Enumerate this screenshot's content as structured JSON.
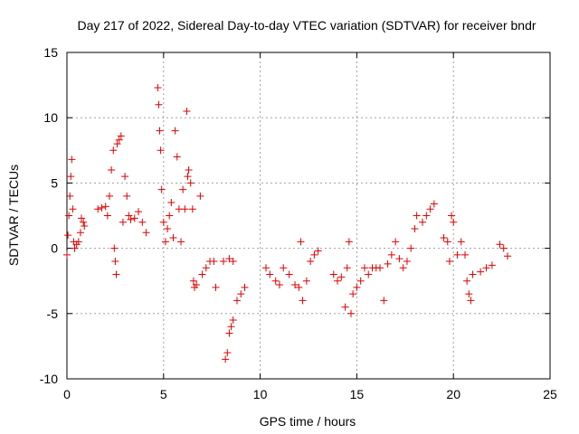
{
  "chart_data": {
    "type": "scatter",
    "title": "Day 217 of 2022, Sidereal Day-to-day VTEC variation (SDTVAR) for receiver bndr",
    "xlabel": "GPS time / hours",
    "ylabel": "SDTVAR / TECUs",
    "xlim": [
      0,
      25
    ],
    "ylim": [
      -10,
      15
    ],
    "xticks": [
      0,
      5,
      10,
      15,
      20,
      25
    ],
    "yticks": [
      -10,
      -5,
      0,
      5,
      10,
      15
    ],
    "xtick_labels": [
      "0",
      "5",
      "10",
      "15",
      "20",
      "25"
    ],
    "ytick_labels": [
      "-10",
      "-5",
      "0",
      "5",
      "10",
      "15"
    ],
    "grid": true,
    "marker": "+",
    "series_color": "#e00000",
    "series": [
      {
        "name": "bndr",
        "points": [
          [
            0.0,
            -0.5
          ],
          [
            0.05,
            1.0
          ],
          [
            0.1,
            2.5
          ],
          [
            0.15,
            4.0
          ],
          [
            0.2,
            5.5
          ],
          [
            0.25,
            6.8
          ],
          [
            0.3,
            3.0
          ],
          [
            0.35,
            0.5
          ],
          [
            0.4,
            0.0
          ],
          [
            0.5,
            0.3
          ],
          [
            0.6,
            0.5
          ],
          [
            0.7,
            1.2
          ],
          [
            0.75,
            2.3
          ],
          [
            0.85,
            2.0
          ],
          [
            0.9,
            1.7
          ],
          [
            1.6,
            3.0
          ],
          [
            1.8,
            3.1
          ],
          [
            2.0,
            3.2
          ],
          [
            2.1,
            2.5
          ],
          [
            2.2,
            4.0
          ],
          [
            2.3,
            6.0
          ],
          [
            2.4,
            7.5
          ],
          [
            2.45,
            0.0
          ],
          [
            2.5,
            -1.0
          ],
          [
            2.55,
            -2.0
          ],
          [
            2.6,
            8.0
          ],
          [
            2.7,
            8.3
          ],
          [
            2.8,
            8.6
          ],
          [
            2.9,
            2.0
          ],
          [
            3.0,
            5.5
          ],
          [
            3.1,
            4.0
          ],
          [
            3.2,
            2.5
          ],
          [
            3.3,
            2.2
          ],
          [
            3.5,
            2.3
          ],
          [
            3.7,
            2.8
          ],
          [
            3.9,
            2.0
          ],
          [
            4.1,
            1.2
          ],
          [
            4.7,
            12.3
          ],
          [
            4.75,
            11.0
          ],
          [
            4.8,
            9.0
          ],
          [
            4.85,
            7.5
          ],
          [
            4.9,
            4.5
          ],
          [
            5.0,
            2.0
          ],
          [
            5.1,
            0.5
          ],
          [
            5.2,
            1.5
          ],
          [
            5.3,
            2.5
          ],
          [
            5.4,
            3.5
          ],
          [
            5.5,
            0.8
          ],
          [
            5.6,
            9.0
          ],
          [
            5.7,
            7.0
          ],
          [
            5.8,
            3.0
          ],
          [
            5.9,
            0.5
          ],
          [
            6.0,
            4.5
          ],
          [
            6.1,
            3.0
          ],
          [
            6.2,
            10.5
          ],
          [
            6.25,
            5.5
          ],
          [
            6.3,
            6.0
          ],
          [
            6.4,
            5.0
          ],
          [
            6.5,
            3.0
          ],
          [
            6.55,
            -2.5
          ],
          [
            6.6,
            -3.0
          ],
          [
            6.7,
            -2.8
          ],
          [
            6.9,
            4.0
          ],
          [
            7.0,
            -2.0
          ],
          [
            7.2,
            -1.5
          ],
          [
            7.4,
            -1.0
          ],
          [
            7.6,
            -1.0
          ],
          [
            7.7,
            -3.0
          ],
          [
            8.1,
            -1.0
          ],
          [
            8.2,
            -8.5
          ],
          [
            8.3,
            -8.0
          ],
          [
            8.4,
            -6.5
          ],
          [
            8.5,
            -6.0
          ],
          [
            8.6,
            -5.5
          ],
          [
            8.8,
            -4.0
          ],
          [
            9.0,
            -3.5
          ],
          [
            9.2,
            -3.0
          ],
          [
            8.4,
            -0.8
          ],
          [
            8.6,
            -1.0
          ],
          [
            10.3,
            -1.5
          ],
          [
            10.5,
            -2.0
          ],
          [
            10.8,
            -2.5
          ],
          [
            11.0,
            -2.8
          ],
          [
            11.2,
            -1.5
          ],
          [
            11.5,
            -2.0
          ],
          [
            11.8,
            -2.8
          ],
          [
            12.0,
            -3.0
          ],
          [
            12.1,
            0.5
          ],
          [
            12.2,
            -4.0
          ],
          [
            12.4,
            -2.5
          ],
          [
            12.6,
            -1.0
          ],
          [
            12.8,
            -0.5
          ],
          [
            13.0,
            -0.2
          ],
          [
            13.8,
            -2.0
          ],
          [
            14.0,
            -2.5
          ],
          [
            14.2,
            -2.2
          ],
          [
            14.4,
            -4.5
          ],
          [
            14.5,
            -1.5
          ],
          [
            14.6,
            0.5
          ],
          [
            14.7,
            -5.0
          ],
          [
            14.8,
            -3.5
          ],
          [
            15.0,
            -3.0
          ],
          [
            15.2,
            -2.5
          ],
          [
            15.4,
            -1.5
          ],
          [
            15.6,
            -2.0
          ],
          [
            15.8,
            -1.5
          ],
          [
            16.0,
            -1.5
          ],
          [
            16.2,
            -1.5
          ],
          [
            16.4,
            -4.0
          ],
          [
            16.6,
            -1.2
          ],
          [
            16.8,
            -0.5
          ],
          [
            17.0,
            0.5
          ],
          [
            17.2,
            -0.8
          ],
          [
            17.4,
            -1.5
          ],
          [
            17.6,
            -1.0
          ],
          [
            17.8,
            0.0
          ],
          [
            18.0,
            1.5
          ],
          [
            18.1,
            2.5
          ],
          [
            18.4,
            2.0
          ],
          [
            18.6,
            2.5
          ],
          [
            18.8,
            3.0
          ],
          [
            19.0,
            3.4
          ],
          [
            19.5,
            0.8
          ],
          [
            19.7,
            0.5
          ],
          [
            19.8,
            -1.0
          ],
          [
            19.9,
            2.5
          ],
          [
            20.0,
            2.0
          ],
          [
            20.2,
            -0.5
          ],
          [
            20.4,
            0.5
          ],
          [
            20.6,
            -0.5
          ],
          [
            20.7,
            -2.5
          ],
          [
            20.8,
            -3.5
          ],
          [
            20.9,
            -4.0
          ],
          [
            21.0,
            -2.0
          ],
          [
            21.4,
            -1.8
          ],
          [
            21.7,
            -1.5
          ],
          [
            22.0,
            -1.3
          ],
          [
            22.4,
            0.3
          ],
          [
            22.6,
            0.0
          ],
          [
            22.8,
            -0.6
          ]
        ]
      }
    ]
  }
}
